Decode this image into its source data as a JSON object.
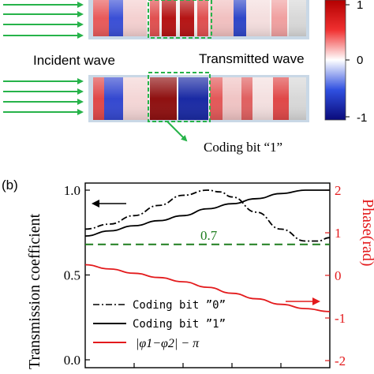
{
  "panel_b_label": "(b)",
  "top_panel": {
    "incident_label": "Incident wave",
    "transmitted_label": "Transmitted wave",
    "coding_label": "Coding bit “1”",
    "colorbar_ticks": [
      "1",
      "0",
      "-1"
    ],
    "colors": {
      "red": "#d41f26",
      "blue": "#1d2a9c",
      "green": "#27b34a",
      "grey": "#c8c8c8"
    }
  },
  "chart_data": {
    "type": "line",
    "xlim": [
      0,
      1
    ],
    "ylim": [
      0,
      1.1
    ],
    "y2lim": [
      -2,
      2
    ],
    "ylabel": "Transmission coefficient",
    "y2label": "Phase(rad)",
    "yticks": [
      "0.0",
      "0.5",
      "1.0"
    ],
    "y2ticks": [
      "-2",
      "-1",
      "0",
      "1",
      "2"
    ],
    "grid": false,
    "legend_position": "lower-left",
    "annotation": "0.7",
    "series": [
      {
        "name": "Coding bit ”0”",
        "axis": "left",
        "style": "dash-dot",
        "color": "#000000",
        "x": [
          0,
          0.1,
          0.2,
          0.3,
          0.4,
          0.5,
          0.55,
          0.6,
          0.7,
          0.8,
          0.9,
          0.95,
          1.0
        ],
        "values": [
          0.77,
          0.8,
          0.85,
          0.91,
          0.97,
          1.0,
          0.99,
          0.96,
          0.87,
          0.77,
          0.7,
          0.7,
          0.72
        ]
      },
      {
        "name": "Coding bit ”1”",
        "axis": "left",
        "style": "solid",
        "color": "#000000",
        "x": [
          0,
          0.1,
          0.2,
          0.3,
          0.4,
          0.5,
          0.6,
          0.7,
          0.8,
          0.9,
          1.0
        ],
        "values": [
          0.73,
          0.76,
          0.79,
          0.82,
          0.85,
          0.89,
          0.92,
          0.95,
          0.98,
          1.0,
          1.0
        ]
      },
      {
        "name": "|φ1−φ2| − π",
        "axis": "right",
        "style": "solid",
        "color": "#e31a1c",
        "x": [
          0,
          0.1,
          0.2,
          0.3,
          0.4,
          0.5,
          0.6,
          0.7,
          0.8,
          0.9,
          1.0
        ],
        "values": [
          0.25,
          0.15,
          0.05,
          -0.05,
          -0.15,
          -0.28,
          -0.42,
          -0.55,
          -0.68,
          -0.78,
          -0.85
        ]
      },
      {
        "name": "",
        "axis": "left",
        "style": "dashed",
        "color": "#1e7d1e",
        "x": [
          0,
          1
        ],
        "values": [
          0.68,
          0.68
        ]
      }
    ]
  }
}
